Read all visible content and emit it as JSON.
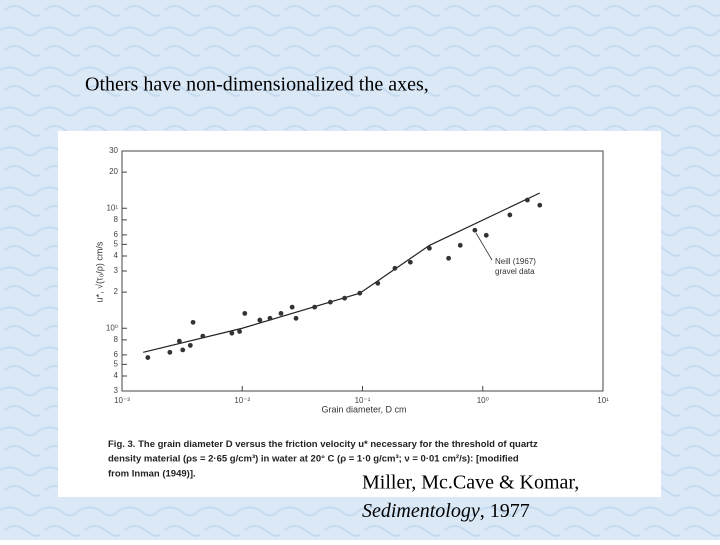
{
  "slide_title": "Others have non-dimensionalized the axes,",
  "citation": {
    "authors": "Miller, Mc.Cave & Komar,",
    "journal": "Sedimentology",
    "year": ", 1977"
  },
  "chart_data": {
    "type": "scatter",
    "xlabel": "Grain diameter, D cm",
    "ylabel": "u*, √(τ₀/ρ)   cm/s",
    "annotation": [
      "Neill (1967)",
      "gravel data"
    ],
    "caption_label": "Fig. 3.",
    "caption": [
      "The grain diameter D versus the friction velocity u* necessary for the threshold of quartz",
      "density material (ρs = 2·65 g/cm³) in water at 20° C (ρ = 1·0 g/cm³; ν = 0·01 cm²/s): [modified",
      "from Inman (1949)]."
    ],
    "log_x": true,
    "log_y": true,
    "grid": false,
    "xlim": [
      0.001,
      10
    ],
    "xticks": [
      {
        "value": 0.001,
        "label": "10⁻³"
      },
      {
        "value": 0.01,
        "label": "10⁻²"
      },
      {
        "value": 0.1,
        "label": "10⁻¹"
      },
      {
        "value": 1,
        "label": "10⁰"
      },
      {
        "value": 10,
        "label": "10¹"
      }
    ],
    "ylim": [
      0.3,
      30
    ],
    "yticks": [
      {
        "value": 0.3,
        "label": "3"
      },
      {
        "value": 0.4,
        "label": "4"
      },
      {
        "value": 0.5,
        "label": "5"
      },
      {
        "value": 0.6,
        "label": "6"
      },
      {
        "value": 0.8,
        "label": "8"
      },
      {
        "value": 1,
        "label": "10⁰"
      },
      2,
      3,
      4,
      5,
      6,
      8,
      {
        "value": 10,
        "label": "10¹"
      },
      20,
      30
    ],
    "x": [
      0.00164,
      0.0025,
      0.003,
      0.0032,
      0.0037,
      0.0039,
      0.0047,
      0.0082,
      0.0095,
      0.0105,
      0.014,
      0.017,
      0.021,
      0.026,
      0.028,
      0.04,
      0.054,
      0.071,
      0.095,
      0.134,
      0.186,
      0.25,
      0.36,
      0.52,
      0.65,
      0.86,
      1.07,
      1.68,
      2.35,
      2.98
    ],
    "series": [
      {
        "color": "#333333",
        "values": [
          0.57,
          0.63,
          0.78,
          0.66,
          0.72,
          1.12,
          0.86,
          0.91,
          0.94,
          1.33,
          1.17,
          1.21,
          1.33,
          1.5,
          1.21,
          1.5,
          1.65,
          1.78,
          1.96,
          2.37,
          3.16,
          3.55,
          4.64,
          3.83,
          4.91,
          6.56,
          5.95,
          8.8,
          11.7,
          10.6
        ]
      }
    ],
    "curve": {
      "color": "#222222",
      "x": [
        0.0015,
        0.01,
        0.095,
        0.36,
        2.98
      ],
      "y": [
        0.63,
        1.0,
        1.96,
        4.9,
        13.4
      ]
    }
  }
}
